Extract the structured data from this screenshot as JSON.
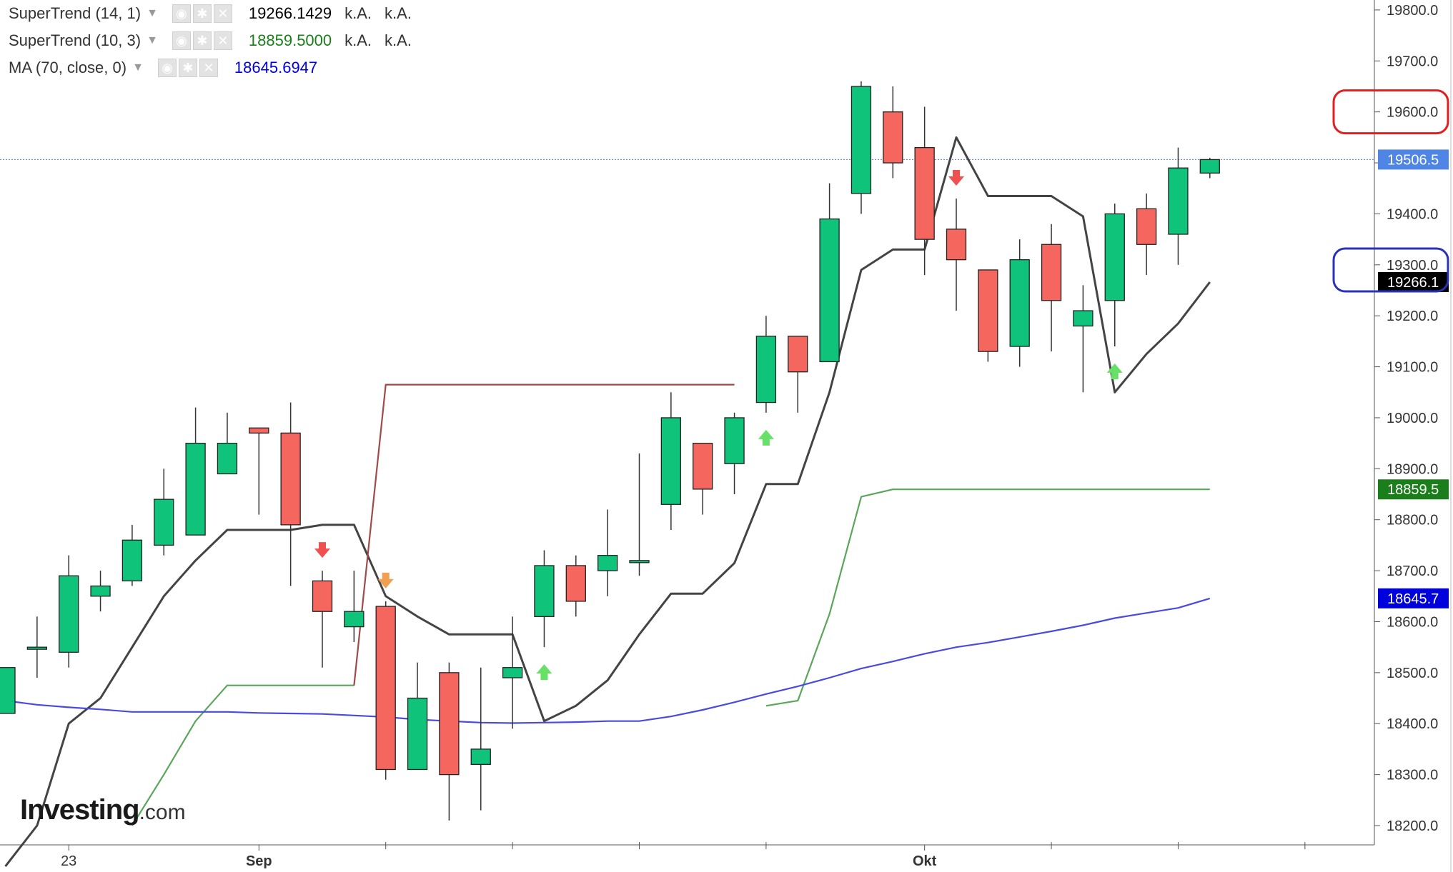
{
  "legend": [
    {
      "name": "SuperTrend (14, 1)",
      "value": "19266.1429",
      "value_color": "#000000",
      "extra1": "k.A.",
      "extra2": "k.A."
    },
    {
      "name": "SuperTrend (10, 3)",
      "value": "18859.5000",
      "value_color": "#1a7f1a",
      "extra1": "k.A.",
      "extra2": "k.A."
    },
    {
      "name": "MA (70, close, 0)",
      "value": "18645.6947",
      "value_color": "#0000dd"
    }
  ],
  "logo": {
    "brand": "Investing",
    "suffix": ".com"
  },
  "chart_data": {
    "type": "candlestick",
    "ylim": [
      18160,
      19840
    ],
    "y_ticks": [
      18200,
      18300,
      18400,
      18500,
      18600,
      18700,
      18800,
      18900,
      19000,
      19100,
      19200,
      19300,
      19400,
      19500,
      19600,
      19700,
      19800
    ],
    "y_tick_labels": [
      "18200.0",
      "18300.0",
      "18400.0",
      "18500.0",
      "18600.0",
      "18700.0",
      "18800.0",
      "18900.0",
      "19000.0",
      "19100.0",
      "19200.0",
      "19300.0",
      "19400.0",
      "19500.0",
      "19600.0",
      "19700.0",
      "19800.0"
    ],
    "x_tick_labels": [
      {
        "label": "23",
        "index": 2
      },
      {
        "label": "Sep",
        "index": 8
      },
      {
        "label": "Okt",
        "index": 29
      }
    ],
    "x_minor_ticks": [
      12,
      16,
      20,
      24,
      33,
      37,
      41
    ],
    "candles": [
      {
        "o": 18420,
        "h": 18510,
        "l": 18420,
        "c": 18510
      },
      {
        "o": 18550,
        "h": 18610,
        "l": 18490,
        "c": 18550
      },
      {
        "o": 18540,
        "h": 18730,
        "l": 18510,
        "c": 18690
      },
      {
        "o": 18650,
        "h": 18700,
        "l": 18620,
        "c": 18670
      },
      {
        "o": 18680,
        "h": 18790,
        "l": 18670,
        "c": 18760
      },
      {
        "o": 18750,
        "h": 18900,
        "l": 18730,
        "c": 18840
      },
      {
        "o": 18770,
        "h": 19020,
        "l": 18770,
        "c": 18950
      },
      {
        "o": 18890,
        "h": 19010,
        "l": 18890,
        "c": 18950
      },
      {
        "o": 18980,
        "h": 18980,
        "l": 18810,
        "c": 18970
      },
      {
        "o": 18970,
        "h": 19030,
        "l": 18670,
        "c": 18790
      },
      {
        "o": 18680,
        "h": 18700,
        "l": 18510,
        "c": 18620
      },
      {
        "o": 18590,
        "h": 18700,
        "l": 18560,
        "c": 18620
      },
      {
        "o": 18630,
        "h": 18640,
        "l": 18290,
        "c": 18310
      },
      {
        "o": 18310,
        "h": 18520,
        "l": 18310,
        "c": 18450
      },
      {
        "o": 18500,
        "h": 18520,
        "l": 18210,
        "c": 18300
      },
      {
        "o": 18320,
        "h": 18510,
        "l": 18230,
        "c": 18350
      },
      {
        "o": 18490,
        "h": 18610,
        "l": 18390,
        "c": 18510
      },
      {
        "o": 18610,
        "h": 18740,
        "l": 18550,
        "c": 18710
      },
      {
        "o": 18710,
        "h": 18730,
        "l": 18610,
        "c": 18640
      },
      {
        "o": 18700,
        "h": 18820,
        "l": 18650,
        "c": 18730
      },
      {
        "o": 18720,
        "h": 18930,
        "l": 18690,
        "c": 18720
      },
      {
        "o": 18830,
        "h": 19050,
        "l": 18780,
        "c": 19000
      },
      {
        "o": 18950,
        "h": 18950,
        "l": 18810,
        "c": 18860
      },
      {
        "o": 18910,
        "h": 19010,
        "l": 18850,
        "c": 19000
      },
      {
        "o": 19030,
        "h": 19200,
        "l": 19010,
        "c": 19160
      },
      {
        "o": 19160,
        "h": 19160,
        "l": 19010,
        "c": 19090
      },
      {
        "o": 19110,
        "h": 19460,
        "l": 19110,
        "c": 19390
      },
      {
        "o": 19440,
        "h": 19660,
        "l": 19400,
        "c": 19650
      },
      {
        "o": 19600,
        "h": 19650,
        "l": 19470,
        "c": 19500
      },
      {
        "o": 19530,
        "h": 19610,
        "l": 19280,
        "c": 19350
      },
      {
        "o": 19370,
        "h": 19430,
        "l": 19210,
        "c": 19310
      },
      {
        "o": 19290,
        "h": 19290,
        "l": 19110,
        "c": 19130
      },
      {
        "o": 19140,
        "h": 19350,
        "l": 19100,
        "c": 19310
      },
      {
        "o": 19340,
        "h": 19380,
        "l": 19130,
        "c": 19230
      },
      {
        "o": 19180,
        "h": 19260,
        "l": 19050,
        "c": 19210
      },
      {
        "o": 19230,
        "h": 19420,
        "l": 19140,
        "c": 19400
      },
      {
        "o": 19410,
        "h": 19440,
        "l": 19280,
        "c": 19340
      },
      {
        "o": 19360,
        "h": 19530,
        "l": 19300,
        "c": 19490
      },
      {
        "o": 19480,
        "h": 19510,
        "l": 19470,
        "c": 19506.5
      }
    ],
    "series": [
      {
        "name": "SuperTrend (14, 1)",
        "color": "#444444",
        "values": [
          18120,
          18200,
          18400,
          18450,
          18550,
          18650,
          18720,
          18780,
          18780,
          18780,
          18790,
          18790,
          18650,
          18610,
          18575,
          18575,
          18575,
          18405,
          18435,
          18485,
          18575,
          18655,
          18655,
          18715,
          18870,
          18870,
          19050,
          19290,
          19330,
          19330,
          19550,
          19435,
          19435,
          19435,
          19395,
          19050,
          19125,
          19185,
          19266.1
        ]
      },
      {
        "name": "SuperTrend (10, 3)",
        "color": "#5aa65a",
        "values": [
          null,
          null,
          null,
          null,
          18200,
          18300,
          18405,
          18475,
          18475,
          18475,
          18475,
          18475,
          null,
          null,
          null,
          null,
          null,
          null,
          null,
          null,
          null,
          null,
          null,
          null,
          18435,
          18445,
          18615,
          18845,
          18859.5,
          18859.5,
          18859.5,
          18859.5,
          18859.5,
          18859.5,
          18859.5,
          18859.5,
          18859.5,
          18859.5,
          18859.5
        ]
      },
      {
        "name": "SuperTrend (10, 3) bearish",
        "color": "#a04a4a",
        "values": [
          null,
          null,
          null,
          null,
          null,
          null,
          null,
          null,
          null,
          null,
          null,
          18475,
          19065,
          19065,
          19065,
          19065,
          19065,
          19065,
          19065,
          19065,
          19065,
          19065,
          19065,
          19065,
          null,
          null,
          null,
          null,
          null,
          null,
          null,
          null,
          null,
          null,
          null,
          null,
          null,
          null,
          null
        ]
      },
      {
        "name": "MA (70, close, 0)",
        "color": "#4a4adf",
        "values": [
          18445,
          18437,
          18432,
          18428,
          18423,
          18423,
          18423,
          18423,
          18421,
          18420,
          18419,
          18416,
          18413,
          18408,
          18405,
          18402,
          18401,
          18402,
          18403,
          18405,
          18405,
          18414,
          18427,
          18442,
          18458,
          18473,
          18490,
          18508,
          18522,
          18537,
          18550,
          18559,
          18570,
          18581,
          18593,
          18607,
          18617,
          18627,
          18645.7
        ]
      }
    ],
    "markers": [
      {
        "index": 10,
        "dir": "down",
        "color": "#f05050"
      },
      {
        "index": 12,
        "dir": "down",
        "color": "#f0a050"
      },
      {
        "index": 17,
        "dir": "up",
        "color": "#66e066"
      },
      {
        "index": 24,
        "dir": "up",
        "color": "#66e066"
      },
      {
        "index": 30,
        "dir": "down",
        "color": "#f05050"
      },
      {
        "index": 35,
        "dir": "up",
        "color": "#66e066"
      }
    ],
    "price_line": 19506.5,
    "badges": [
      {
        "label": "19506.5",
        "value": 19506.5,
        "bg": "#4f86e6"
      },
      {
        "label": "19266.1",
        "value": 19266.1,
        "bg": "#000000"
      },
      {
        "label": "18859.5",
        "value": 18859.5,
        "bg": "#1a7f1a"
      },
      {
        "label": "18645.7",
        "value": 18645.7,
        "bg": "#0000dd"
      }
    ],
    "highlights": [
      {
        "value": 19600,
        "color": "#e02020"
      },
      {
        "value": 19290,
        "color": "#2a33b8"
      }
    ]
  }
}
